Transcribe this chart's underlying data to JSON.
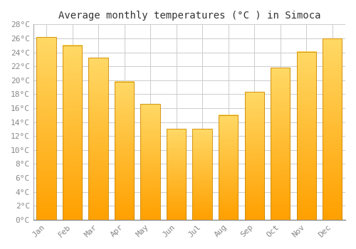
{
  "title": "Average monthly temperatures (°C ) in Simoca",
  "months": [
    "Jan",
    "Feb",
    "Mar",
    "Apr",
    "May",
    "Jun",
    "Jul",
    "Aug",
    "Sep",
    "Oct",
    "Nov",
    "Dec"
  ],
  "values": [
    26.2,
    25.0,
    23.2,
    19.8,
    16.6,
    13.0,
    13.0,
    15.0,
    18.3,
    21.8,
    24.1,
    26.0
  ],
  "bar_color_top": "#FFD966",
  "bar_color_bottom": "#FFA000",
  "bar_edge_color": "#CC8800",
  "ylim": [
    0,
    28
  ],
  "yticks": [
    0,
    2,
    4,
    6,
    8,
    10,
    12,
    14,
    16,
    18,
    20,
    22,
    24,
    26,
    28
  ],
  "background_color": "#FFFFFF",
  "grid_color": "#CCCCCC",
  "title_fontsize": 10,
  "tick_fontsize": 8,
  "tick_color": "#888888",
  "font_family": "monospace"
}
